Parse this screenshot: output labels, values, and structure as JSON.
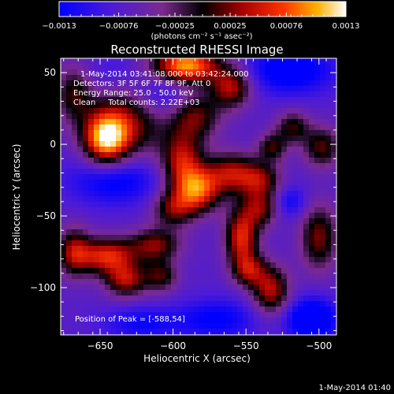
{
  "chart_data": {
    "type": "heatmap",
    "title": "Reconstructed RHESSI Image",
    "xlabel": "Heliocentric X (arcsec)",
    "ylabel": "Heliocentric Y (arcsec)",
    "xlim": [
      -677,
      -488
    ],
    "ylim": [
      -133,
      60
    ],
    "x_ticks": [
      -650,
      -600,
      -550,
      -500
    ],
    "x_tick_labels": [
      "−650",
      "−600",
      "−550",
      "−500"
    ],
    "y_ticks": [
      50,
      0,
      -50,
      -100
    ],
    "y_tick_labels": [
      "50",
      "0",
      "−50",
      "−100"
    ],
    "colorbar": {
      "ticks": [
        -0.0013,
        -0.00076,
        -0.00025,
        0.00025,
        0.00076,
        0.0013
      ],
      "tick_labels": [
        "−0.0013",
        "−0.00076",
        "−0.00025",
        "0.00025",
        "0.00076",
        "0.0013"
      ],
      "units_label": "(photons cm⁻² s⁻¹ asec⁻²)",
      "range": [
        -0.0013,
        0.0013
      ]
    },
    "annotations": [
      "1-May-2014 03:41:08.000 to 03:42:24.000",
      "Detectors: 3F 5F 6F 7F 8F 9F, Att 0",
      "Energy Range: 25.0 - 50.0 keV",
      "Clean     Total counts: 2.22E+03"
    ],
    "peak_label": "Position of Peak = [-588,54]",
    "peak": [
      -588,
      54
    ],
    "timestamp": "1-May-2014 01:40",
    "sources": [
      {
        "x": -591,
        "y": 55,
        "amp": 1.0,
        "sx": 16,
        "sy": 9
      },
      {
        "x": -646,
        "y": 4,
        "amp": 1.0,
        "sx": 11,
        "sy": 13
      },
      {
        "x": -628,
        "y": 18,
        "amp": 0.55,
        "sx": 18,
        "sy": 18
      },
      {
        "x": -668,
        "y": 35,
        "amp": 0.45,
        "sx": 9,
        "sy": 14
      },
      {
        "x": -560,
        "y": 40,
        "amp": 0.65,
        "sx": 10,
        "sy": 10
      },
      {
        "x": -585,
        "y": 20,
        "amp": 0.55,
        "sx": 12,
        "sy": 12
      },
      {
        "x": -594,
        "y": -12,
        "amp": 0.65,
        "sx": 10,
        "sy": 14
      },
      {
        "x": -583,
        "y": -32,
        "amp": 0.8,
        "sx": 11,
        "sy": 11
      },
      {
        "x": -560,
        "y": -20,
        "amp": 0.6,
        "sx": 12,
        "sy": 10
      },
      {
        "x": -540,
        "y": -25,
        "amp": 0.5,
        "sx": 10,
        "sy": 9
      },
      {
        "x": -600,
        "y": -45,
        "amp": 0.5,
        "sx": 10,
        "sy": 9
      },
      {
        "x": -553,
        "y": -65,
        "amp": 0.75,
        "sx": 8,
        "sy": 14
      },
      {
        "x": -540,
        "y": -45,
        "amp": 0.5,
        "sx": 9,
        "sy": 9
      },
      {
        "x": -533,
        "y": -102,
        "amp": 0.65,
        "sx": 9,
        "sy": 12
      },
      {
        "x": -548,
        "y": -88,
        "amp": 0.5,
        "sx": 8,
        "sy": 8
      },
      {
        "x": -612,
        "y": -70,
        "amp": 0.55,
        "sx": 12,
        "sy": 8
      },
      {
        "x": -645,
        "y": -78,
        "amp": 0.75,
        "sx": 14,
        "sy": 9
      },
      {
        "x": -668,
        "y": -75,
        "amp": 0.55,
        "sx": 8,
        "sy": 12
      },
      {
        "x": -632,
        "y": -95,
        "amp": 0.6,
        "sx": 10,
        "sy": 8
      },
      {
        "x": -608,
        "y": -92,
        "amp": 0.45,
        "sx": 8,
        "sy": 8
      },
      {
        "x": -500,
        "y": -65,
        "amp": 0.55,
        "sx": 9,
        "sy": 16
      },
      {
        "x": -498,
        "y": -2,
        "amp": 0.5,
        "sx": 9,
        "sy": 10
      },
      {
        "x": -518,
        "y": 12,
        "amp": 0.45,
        "sx": 8,
        "sy": 8
      },
      {
        "x": -532,
        "y": -2,
        "amp": 0.45,
        "sx": 7,
        "sy": 7
      },
      {
        "x": -640,
        "y": -25,
        "amp": -0.4,
        "sx": 22,
        "sy": 12
      },
      {
        "x": -608,
        "y": 33,
        "amp": -0.35,
        "sx": 16,
        "sy": 12
      },
      {
        "x": -640,
        "y": 50,
        "amp": -0.15,
        "sx": 14,
        "sy": 10
      },
      {
        "x": -520,
        "y": 52,
        "amp": -0.45,
        "sx": 22,
        "sy": 12
      },
      {
        "x": -505,
        "y": -122,
        "amp": -0.6,
        "sx": 12,
        "sy": 10
      },
      {
        "x": -570,
        "y": -122,
        "amp": -0.35,
        "sx": 20,
        "sy": 10
      },
      {
        "x": -622,
        "y": -125,
        "amp": -0.3,
        "sx": 18,
        "sy": 8
      },
      {
        "x": -520,
        "y": -40,
        "amp": -0.3,
        "sx": 8,
        "sy": 8
      }
    ]
  }
}
